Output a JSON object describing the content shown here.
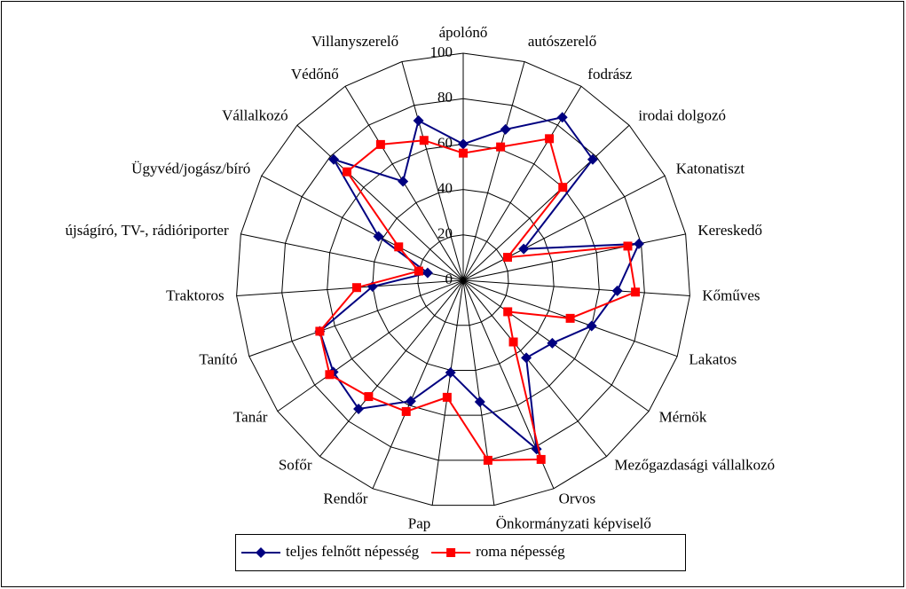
{
  "chart_data": {
    "type": "radar",
    "categories": [
      "ápolónő",
      "autószerelő",
      "fodrász",
      "irodai dolgozó",
      "Katonatiszt",
      "Kereskedő",
      "Kőműves",
      "Lakatos",
      "Mérnök",
      "Mezőgazdasági vállalkozó",
      "Orvos",
      "Önkormányzati képviselő",
      "Pap",
      "Rendőr",
      "Sofőr",
      "Tanár",
      "Tanító",
      "Traktoros",
      "újságíró, TV-, rádióriporter",
      "Ügyvéd/jogász/bíró",
      "Vállalkozó",
      "Védőnő",
      "Villanyszerelő"
    ],
    "series": [
      {
        "name": "teljes felnőtt népesség",
        "color": "#000080",
        "marker": "diamond",
        "values": [
          60,
          69,
          84,
          78,
          30,
          79,
          68,
          60,
          48,
          44,
          81,
          54,
          41,
          58,
          73,
          70,
          67,
          40,
          16,
          42,
          78,
          51,
          73
        ]
      },
      {
        "name": "roma népesség",
        "color": "#ff0000",
        "marker": "square",
        "values": [
          56,
          61,
          73,
          60,
          22,
          74,
          76,
          50,
          24,
          35,
          86,
          80,
          52,
          63,
          66,
          72,
          67,
          47,
          20,
          32,
          70,
          70,
          64
        ]
      }
    ],
    "ylim": [
      0,
      100
    ],
    "yticks": [
      0,
      20,
      40,
      60,
      80,
      100
    ],
    "grid": true,
    "legend": "bottom"
  }
}
